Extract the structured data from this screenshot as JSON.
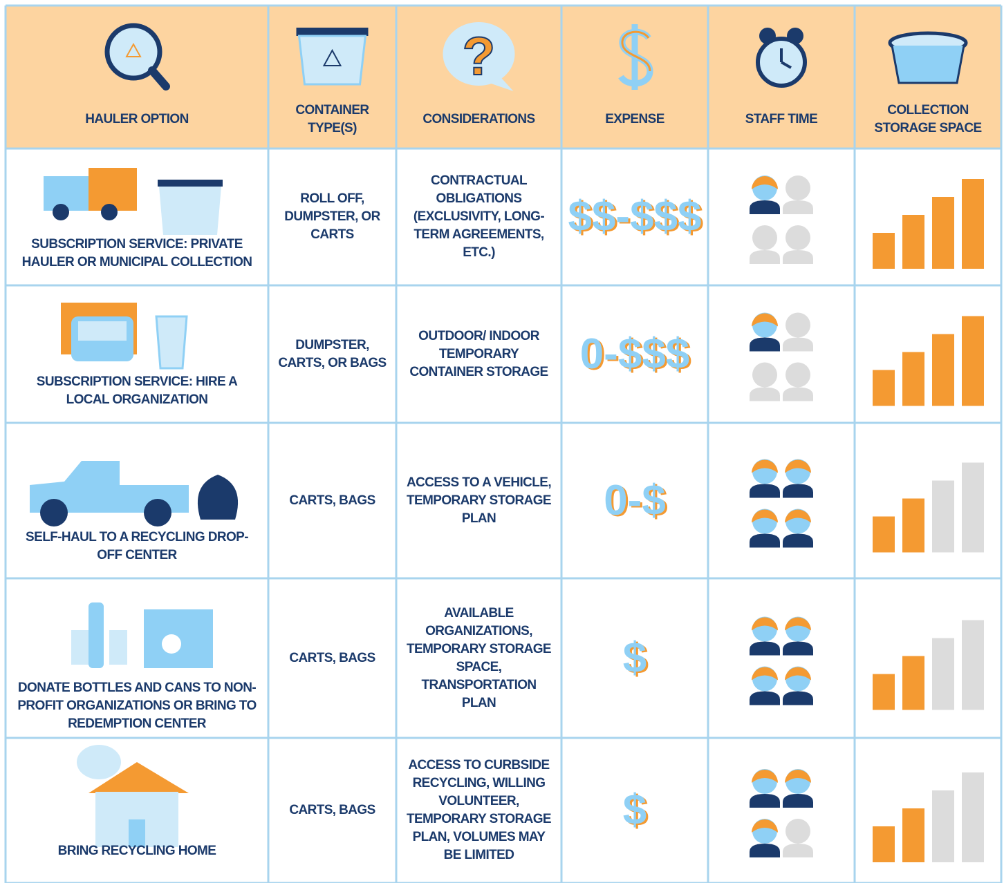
{
  "header": {
    "columns": [
      "HAULER OPTION",
      "CONTAINER TYPE(S)",
      "CONSIDERATIONS",
      "EXPENSE",
      "STAFF TIME",
      "COLLECTION STORAGE SPACE"
    ]
  },
  "rows": [
    {
      "option": "SUBSCRIPTION SERVICE: PRIVATE HAULER OR MUNICIPAL COLLECTION",
      "containers": "ROLL OFF, DUMPSTER, OR CARTS",
      "considerations": "CONTRACTUAL OBLIGATIONS (EXCLUSIVITY, LONG-TERM AGREEMENTS, ETC.)",
      "expense": "$$-$$$",
      "staff_time": 1,
      "storage_space": 4
    },
    {
      "option": "SUBSCRIPTION SERVICE: HIRE A LOCAL ORGANIZATION",
      "containers": "DUMPSTER, CARTS, OR BAGS",
      "considerations": "OUTDOOR/ INDOOR TEMPORARY CONTAINER STORAGE",
      "expense": "0-$$$",
      "staff_time": 1,
      "storage_space": 4
    },
    {
      "option": "SELF-HAUL TO A RECYCLING DROP-OFF CENTER",
      "containers": "CARTS, BAGS",
      "considerations": "ACCESS TO A VEHICLE, TEMPORARY STORAGE PLAN",
      "expense": "0-$",
      "staff_time": 4,
      "storage_space": 2
    },
    {
      "option": "DONATE BOTTLES AND CANS TO NON-PROFIT ORGANIZATIONS OR BRING TO REDEMPTION CENTER",
      "containers": "CARTS, BAGS",
      "considerations": "AVAILABLE ORGANIZATIONS, TEMPORARY STORAGE SPACE, TRANSPORTATION PLAN",
      "expense": "$",
      "staff_time": 4,
      "storage_space": 2
    },
    {
      "option": "BRING RECYCLING HOME",
      "containers": "CARTS, BAGS",
      "considerations": "ACCESS TO CURBSIDE RECYCLING, WILLING VOLUNTEER, TEMPORARY STORAGE PLAN, VOLUMES MAY BE LIMITED",
      "expense": "$",
      "staff_time": 3,
      "storage_space": 2
    }
  ]
}
